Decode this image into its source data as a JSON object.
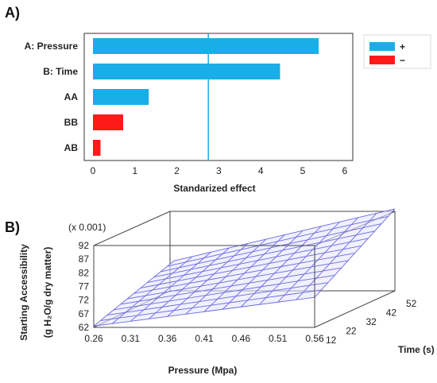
{
  "chart_data": [
    {
      "panel": "A)",
      "type": "bar",
      "orientation": "horizontal",
      "categories": [
        "A: Pressure",
        "B: Time",
        "AA",
        "BB",
        "AB"
      ],
      "values": [
        5.38,
        4.46,
        1.33,
        0.72,
        0.18
      ],
      "signs": [
        "+",
        "+",
        "+",
        "-",
        "-"
      ],
      "xlabel": "Standarized effect",
      "xticks": [
        "0",
        "1",
        "2",
        "3",
        "4",
        "5",
        "6"
      ],
      "xlim": [
        0,
        6
      ],
      "reference_line": 2.75,
      "legend": [
        {
          "label": "+",
          "color": "#1aaee8"
        },
        {
          "label": "−",
          "color": "#ff1a1a"
        }
      ],
      "legend_placement": "right",
      "grid": false
    },
    {
      "panel": "B)",
      "type": "surface",
      "multiplier_label": "(x 0.001)",
      "zlabel_line1": "Starting Accessibility",
      "zlabel_line2": "(g H₂O/g dry matter)",
      "xlabel": "Pressure (Mpa)",
      "ylabel": "Time (s)",
      "xticks": [
        "0.26",
        "0.31",
        "0.36",
        "0.41",
        "0.46",
        "0.51",
        "0.56"
      ],
      "yticks": [
        "12",
        "22",
        "32",
        "42",
        "52"
      ],
      "zticks": [
        "62",
        "67",
        "72",
        "77",
        "82",
        "87",
        "92"
      ],
      "xlim": [
        0.26,
        0.56
      ],
      "ylim": [
        12,
        52
      ],
      "zlim": [
        62,
        92
      ],
      "corner_values": [
        {
          "x": 0.26,
          "y": 12,
          "z": 62.5
        },
        {
          "x": 0.56,
          "y": 12,
          "z": 73
        },
        {
          "x": 0.26,
          "y": 52,
          "z": 73
        },
        {
          "x": 0.56,
          "y": 52,
          "z": 92
        }
      ],
      "mesh_color": "#6a6ae0"
    }
  ]
}
